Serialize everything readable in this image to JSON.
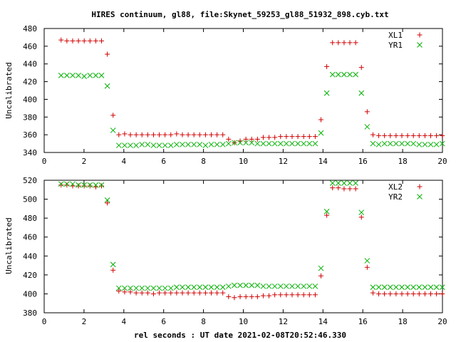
{
  "chart_data": {
    "title": "HIRES continuum, gl88, file:Skynet_59253_gl88_51932_898.cyb.txt",
    "xlabel": "rel seconds : UT date 2021-02-08T20:52:46.330",
    "colors": {
      "red": "#d00000",
      "green": "#00b000"
    },
    "panels": [
      {
        "type": "scatter",
        "ylabel": "Uncalibrated",
        "xlim": [
          0,
          20
        ],
        "ylim": [
          340,
          480
        ],
        "xticks": [
          0,
          2,
          4,
          6,
          8,
          10,
          12,
          14,
          16,
          18,
          20
        ],
        "yticks": [
          340,
          360,
          380,
          400,
          420,
          440,
          460,
          480
        ],
        "legend_position": "top-right",
        "series": [
          {
            "name": "XL1",
            "marker": "+",
            "color": "#d00000",
            "x": [
              0.85,
              1.14,
              1.43,
              1.72,
              2.01,
              2.3,
              2.59,
              2.88,
              3.17,
              3.46,
              3.75,
              4.04,
              4.33,
              4.62,
              4.91,
              5.2,
              5.49,
              5.78,
              6.07,
              6.36,
              6.65,
              6.94,
              7.23,
              7.52,
              7.81,
              8.1,
              8.39,
              8.68,
              8.97,
              9.26,
              9.55,
              9.84,
              10.13,
              10.42,
              10.71,
              11.0,
              11.29,
              11.58,
              11.87,
              12.16,
              12.45,
              12.74,
              13.03,
              13.32,
              13.61,
              13.9,
              14.19,
              14.48,
              14.77,
              15.06,
              15.35,
              15.64,
              15.93,
              16.22,
              16.51,
              16.8,
              17.09,
              17.38,
              17.67,
              17.96,
              18.25,
              18.54,
              18.83,
              19.12,
              19.41,
              19.7,
              19.99
            ],
            "y": [
              467,
              466,
              466,
              466,
              466,
              466,
              466,
              466,
              451,
              382,
              360,
              361,
              360,
              360,
              360,
              360,
              360,
              360,
              360,
              360,
              361,
              360,
              360,
              360,
              360,
              360,
              360,
              360,
              360,
              355,
              351,
              353,
              355,
              355,
              355,
              357,
              357,
              357,
              358,
              358,
              358,
              358,
              358,
              358,
              358,
              377,
              437,
              464,
              464,
              464,
              464,
              464,
              436,
              386,
              360,
              359,
              359,
              359,
              359,
              359,
              359,
              359,
              359,
              359,
              359,
              359,
              359
            ]
          },
          {
            "name": "YR1",
            "marker": "x",
            "color": "#00b000",
            "x": [
              0.85,
              1.14,
              1.43,
              1.72,
              2.01,
              2.3,
              2.59,
              2.88,
              3.17,
              3.46,
              3.75,
              4.04,
              4.33,
              4.62,
              4.91,
              5.2,
              5.49,
              5.78,
              6.07,
              6.36,
              6.65,
              6.94,
              7.23,
              7.52,
              7.81,
              8.1,
              8.39,
              8.68,
              8.97,
              9.26,
              9.55,
              9.84,
              10.13,
              10.42,
              10.71,
              11.0,
              11.29,
              11.58,
              11.87,
              12.16,
              12.45,
              12.74,
              13.03,
              13.32,
              13.61,
              13.9,
              14.19,
              14.48,
              14.77,
              15.06,
              15.35,
              15.64,
              15.93,
              16.22,
              16.51,
              16.8,
              17.09,
              17.38,
              17.67,
              17.96,
              18.25,
              18.54,
              18.83,
              19.12,
              19.41,
              19.7,
              19.99
            ],
            "y": [
              427,
              427,
              427,
              427,
              426,
              427,
              427,
              427,
              415,
              365,
              348,
              348,
              348,
              348,
              349,
              349,
              348,
              348,
              348,
              348,
              349,
              349,
              349,
              349,
              349,
              348,
              349,
              349,
              349,
              350,
              351,
              351,
              351,
              351,
              350,
              350,
              350,
              350,
              350,
              350,
              350,
              350,
              350,
              350,
              350,
              362,
              407,
              428,
              428,
              428,
              428,
              428,
              407,
              369,
              350,
              349,
              350,
              350,
              350,
              350,
              350,
              350,
              349,
              349,
              349,
              349,
              350
            ]
          }
        ]
      },
      {
        "type": "scatter",
        "ylabel": "Uncalibrated",
        "xlim": [
          0,
          20
        ],
        "ylim": [
          380,
          520
        ],
        "xticks": [
          0,
          2,
          4,
          6,
          8,
          10,
          12,
          14,
          16,
          18,
          20
        ],
        "yticks": [
          380,
          400,
          420,
          440,
          460,
          480,
          500,
          520
        ],
        "legend_position": "top-right",
        "series": [
          {
            "name": "XL2",
            "marker": "+",
            "color": "#d00000",
            "x": [
              0.85,
              1.14,
              1.43,
              1.72,
              2.01,
              2.3,
              2.59,
              2.88,
              3.17,
              3.46,
              3.75,
              4.04,
              4.33,
              4.62,
              4.91,
              5.2,
              5.49,
              5.78,
              6.07,
              6.36,
              6.65,
              6.94,
              7.23,
              7.52,
              7.81,
              8.1,
              8.39,
              8.68,
              8.97,
              9.26,
              9.55,
              9.84,
              10.13,
              10.42,
              10.71,
              11.0,
              11.29,
              11.58,
              11.87,
              12.16,
              12.45,
              12.74,
              13.03,
              13.32,
              13.61,
              13.9,
              14.19,
              14.48,
              14.77,
              15.06,
              15.35,
              15.64,
              15.93,
              16.22,
              16.51,
              16.8,
              17.09,
              17.38,
              17.67,
              17.96,
              18.25,
              18.54,
              18.83,
              19.12,
              19.41,
              19.7,
              19.99
            ],
            "y": [
              515,
              515,
              514,
              514,
              514,
              514,
              513,
              514,
              496,
              425,
              403,
              402,
              402,
              401,
              401,
              401,
              400,
              401,
              401,
              401,
              401,
              401,
              401,
              401,
              401,
              401,
              401,
              401,
              401,
              397,
              396,
              397,
              397,
              397,
              397,
              398,
              398,
              399,
              399,
              399,
              399,
              399,
              399,
              399,
              399,
              419,
              483,
              512,
              512,
              511,
              511,
              511,
              481,
              428,
              401,
              400,
              400,
              400,
              400,
              400,
              400,
              400,
              400,
              400,
              400,
              400,
              400
            ]
          },
          {
            "name": "YR2",
            "marker": "x",
            "color": "#00b000",
            "x": [
              0.85,
              1.14,
              1.43,
              1.72,
              2.01,
              2.3,
              2.59,
              2.88,
              3.17,
              3.46,
              3.75,
              4.04,
              4.33,
              4.62,
              4.91,
              5.2,
              5.49,
              5.78,
              6.07,
              6.36,
              6.65,
              6.94,
              7.23,
              7.52,
              7.81,
              8.1,
              8.39,
              8.68,
              8.97,
              9.26,
              9.55,
              9.84,
              10.13,
              10.42,
              10.71,
              11.0,
              11.29,
              11.58,
              11.87,
              12.16,
              12.45,
              12.74,
              13.03,
              13.32,
              13.61,
              13.9,
              14.19,
              14.48,
              14.77,
              15.06,
              15.35,
              15.64,
              15.93,
              16.22,
              16.51,
              16.8,
              17.09,
              17.38,
              17.67,
              17.96,
              18.25,
              18.54,
              18.83,
              19.12,
              19.41,
              19.7,
              19.99
            ],
            "y": [
              516,
              516,
              516,
              515,
              515,
              515,
              515,
              515,
              499,
              431,
              406,
              406,
              406,
              406,
              406,
              406,
              406,
              406,
              406,
              406,
              407,
              407,
              407,
              407,
              407,
              407,
              407,
              407,
              407,
              408,
              409,
              409,
              409,
              409,
              409,
              408,
              408,
              408,
              408,
              408,
              408,
              408,
              408,
              408,
              408,
              427,
              487,
              517,
              517,
              517,
              517,
              517,
              486,
              435,
              407,
              407,
              407,
              407,
              407,
              407,
              407,
              407,
              407,
              407,
              407,
              407,
              407
            ]
          }
        ]
      }
    ]
  }
}
